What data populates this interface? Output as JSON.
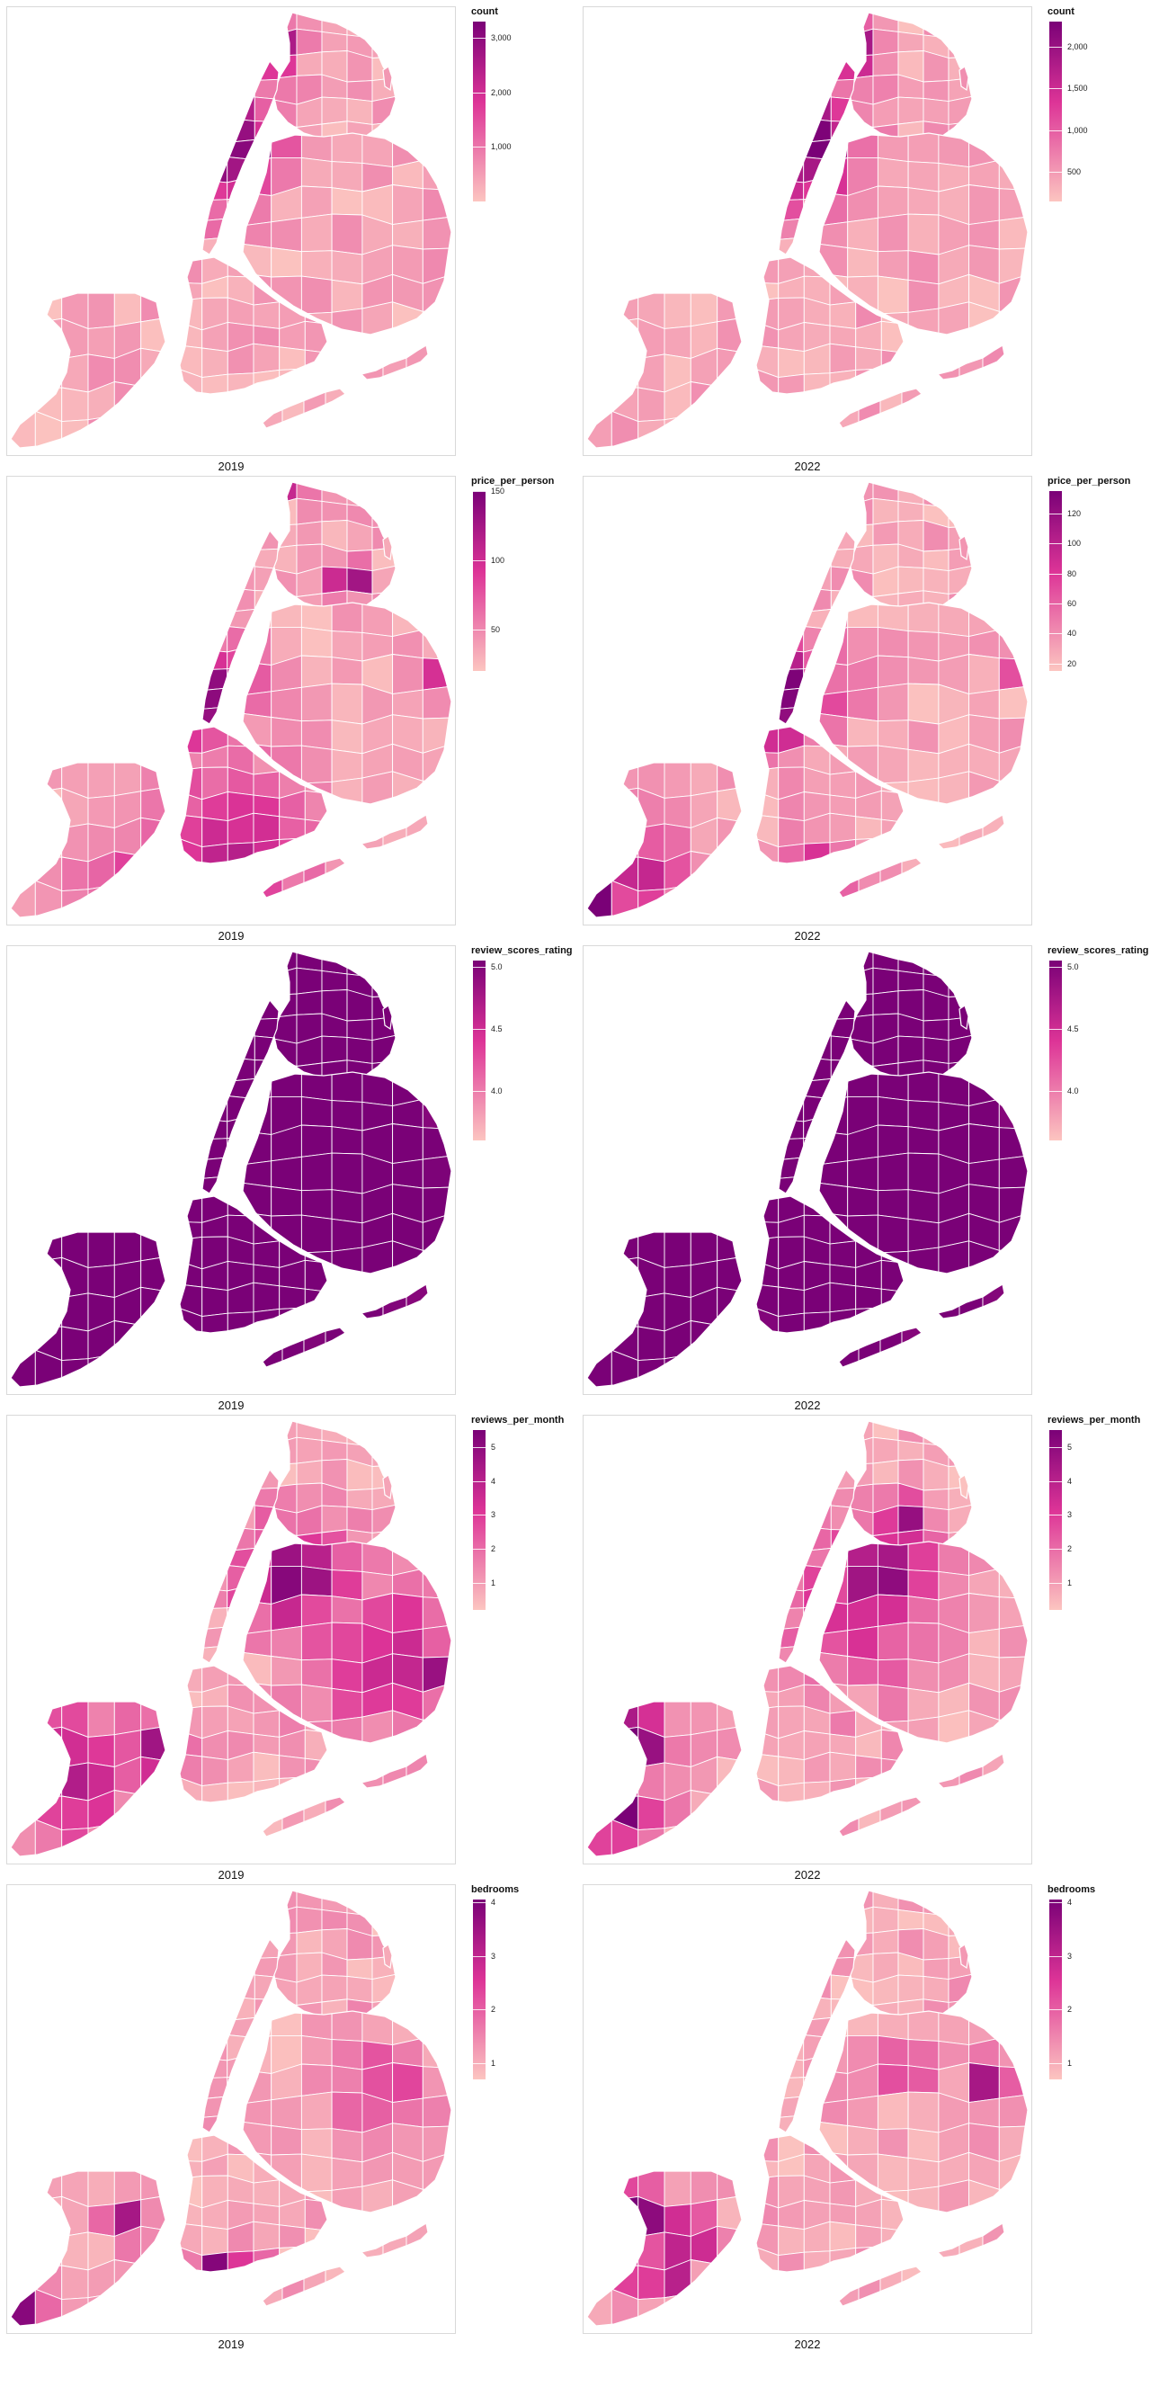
{
  "rows": [
    {
      "variable": "count",
      "panels": [
        {
          "year": "2019",
          "legend_title": "count",
          "legend_min": 0,
          "legend_max": 3300,
          "ticks": [
            {
              "value": 1000,
              "label": "1,000"
            },
            {
              "value": 2000,
              "label": "2,000"
            },
            {
              "value": 3000,
              "label": "3,000"
            }
          ]
        },
        {
          "year": "2022",
          "legend_title": "count",
          "legend_min": 150,
          "legend_max": 2300,
          "ticks": [
            {
              "value": 500,
              "label": "500"
            },
            {
              "value": 1000,
              "label": "1,000"
            },
            {
              "value": 1500,
              "label": "1,500"
            },
            {
              "value": 2000,
              "label": "2,000"
            }
          ]
        }
      ]
    },
    {
      "variable": "price_per_person",
      "panels": [
        {
          "year": "2019",
          "legend_title": "price_per_person",
          "legend_min": 20,
          "legend_max": 150,
          "ticks": [
            {
              "value": 50,
              "label": "50"
            },
            {
              "value": 100,
              "label": "100"
            },
            {
              "value": 150,
              "label": "150"
            }
          ]
        },
        {
          "year": "2022",
          "legend_title": "price_per_person",
          "legend_min": 15,
          "legend_max": 135,
          "ticks": [
            {
              "value": 20,
              "label": "20"
            },
            {
              "value": 40,
              "label": "40"
            },
            {
              "value": 60,
              "label": "60"
            },
            {
              "value": 80,
              "label": "80"
            },
            {
              "value": 100,
              "label": "100"
            },
            {
              "value": 120,
              "label": "120"
            }
          ]
        }
      ]
    },
    {
      "variable": "review_scores_rating",
      "panels": [
        {
          "year": "2019",
          "legend_title": "review_scores_rating",
          "legend_min": 3.6,
          "legend_max": 5.05,
          "ticks": [
            {
              "value": 4.0,
              "label": "4.0"
            },
            {
              "value": 4.5,
              "label": "4.5"
            },
            {
              "value": 5.0,
              "label": "5.0"
            }
          ]
        },
        {
          "year": "2022",
          "legend_title": "review_scores_rating",
          "legend_min": 3.6,
          "legend_max": 5.05,
          "ticks": [
            {
              "value": 4.0,
              "label": "4.0"
            },
            {
              "value": 4.5,
              "label": "4.5"
            },
            {
              "value": 5.0,
              "label": "5.0"
            }
          ]
        }
      ]
    },
    {
      "variable": "reviews_per_month",
      "panels": [
        {
          "year": "2019",
          "legend_title": "reviews_per_month",
          "legend_min": 0.2,
          "legend_max": 5.5,
          "ticks": [
            {
              "value": 1,
              "label": "1"
            },
            {
              "value": 2,
              "label": "2"
            },
            {
              "value": 3,
              "label": "3"
            },
            {
              "value": 4,
              "label": "4"
            },
            {
              "value": 5,
              "label": "5"
            }
          ]
        },
        {
          "year": "2022",
          "legend_title": "reviews_per_month",
          "legend_min": 0.2,
          "legend_max": 5.5,
          "ticks": [
            {
              "value": 1,
              "label": "1"
            },
            {
              "value": 2,
              "label": "2"
            },
            {
              "value": 3,
              "label": "3"
            },
            {
              "value": 4,
              "label": "4"
            },
            {
              "value": 5,
              "label": "5"
            }
          ]
        }
      ]
    },
    {
      "variable": "bedrooms",
      "panels": [
        {
          "year": "2019",
          "legend_title": "bedrooms",
          "legend_min": 0.7,
          "legend_max": 4.05,
          "ticks": [
            {
              "value": 1,
              "label": "1"
            },
            {
              "value": 2,
              "label": "2"
            },
            {
              "value": 3,
              "label": "3"
            },
            {
              "value": 4,
              "label": "4"
            }
          ]
        },
        {
          "year": "2022",
          "legend_title": "bedrooms",
          "legend_min": 0.7,
          "legend_max": 4.05,
          "ticks": [
            {
              "value": 1,
              "label": "1"
            },
            {
              "value": 2,
              "label": "2"
            },
            {
              "value": 3,
              "label": "3"
            },
            {
              "value": 4,
              "label": "4"
            }
          ]
        }
      ]
    }
  ],
  "colors": {
    "scale_low": "#fcc5c0",
    "scale_mid": "#dd3497",
    "scale_high": "#7a0177",
    "boundary": "#ffffff",
    "frame": "#d9d9d9"
  }
}
